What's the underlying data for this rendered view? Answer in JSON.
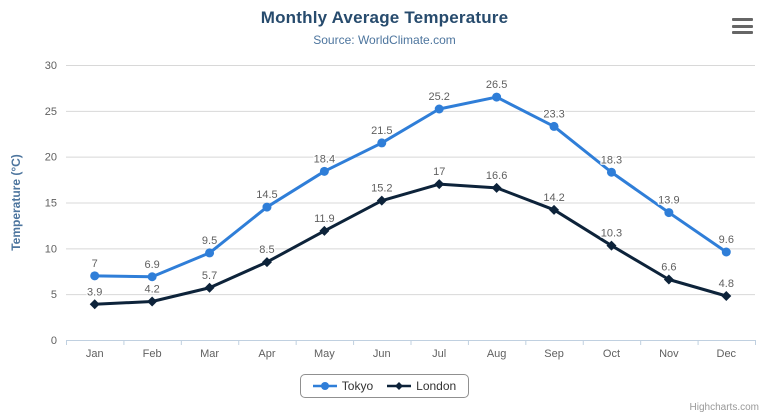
{
  "header": {
    "title": "Monthly Average Temperature",
    "subtitle": "Source: WorldClimate.com"
  },
  "export_menu_icon": "hamburger-icon",
  "credits": {
    "label": "Highcharts.com"
  },
  "colors": {
    "title": "#274b6d",
    "subtitle": "#4d759e",
    "axis_labels": "#606060",
    "gridline": "#d8d8d8",
    "axis_line": "#c0d0e0",
    "tokyo": "#2f7ed8",
    "london": "#0d233a"
  },
  "chart_data": {
    "type": "line",
    "title": "Monthly Average Temperature",
    "subtitle": "Source: WorldClimate.com",
    "xlabel": "",
    "ylabel": "Temperature (°C)",
    "ylim": [
      0,
      30
    ],
    "yticks": [
      0,
      5,
      10,
      15,
      20,
      25,
      30
    ],
    "grid": true,
    "legend_position": "bottom",
    "categories": [
      "Jan",
      "Feb",
      "Mar",
      "Apr",
      "May",
      "Jun",
      "Jul",
      "Aug",
      "Sep",
      "Oct",
      "Nov",
      "Dec"
    ],
    "series": [
      {
        "name": "Tokyo",
        "color": "#2f7ed8",
        "marker": "circle",
        "values": [
          7,
          6.9,
          9.5,
          14.5,
          18.4,
          21.5,
          25.2,
          26.5,
          23.3,
          18.3,
          13.9,
          9.6
        ]
      },
      {
        "name": "London",
        "color": "#0d233a",
        "marker": "diamond",
        "values": [
          3.9,
          4.2,
          5.7,
          8.5,
          11.9,
          15.2,
          17,
          16.6,
          14.2,
          10.3,
          6.6,
          4.8
        ]
      }
    ]
  }
}
